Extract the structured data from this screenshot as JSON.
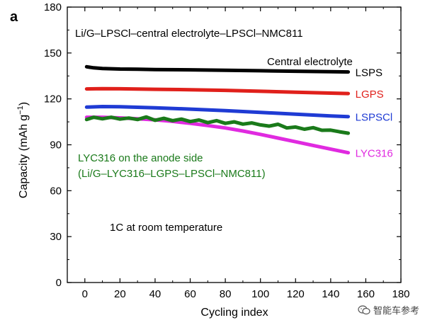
{
  "watermark": "智能车参考",
  "chart_data": {
    "type": "line",
    "panel_label": "a",
    "title": "Li/G–LPSCl–central electrolyte–LPSCl–NMC811",
    "legend_title": "Central electrolyte",
    "xlabel": "Cycling index",
    "ylabel_parts": [
      "Capacity (mAh g",
      "−1",
      ")"
    ],
    "xlim": [
      -10,
      180
    ],
    "ylim": [
      0,
      180
    ],
    "xticks": [
      0,
      20,
      40,
      60,
      80,
      100,
      120,
      140,
      160,
      180
    ],
    "yticks": [
      0,
      30,
      60,
      90,
      120,
      150,
      180
    ],
    "annotations": [
      "LYC316 on the anode side",
      "(Li/G–LYC316–LGPS–LPSCl–NMC811)",
      "1C at room temperature"
    ],
    "series": [
      {
        "name": "LSPS",
        "color": "#000000",
        "x": [
          1,
          5,
          10,
          20,
          30,
          40,
          60,
          80,
          100,
          120,
          140,
          150
        ],
        "y": [
          141,
          140.3,
          139.9,
          139.5,
          139.4,
          139.2,
          139,
          138.7,
          138.4,
          138.1,
          137.8,
          137.6
        ]
      },
      {
        "name": "LGPS",
        "color": "#e0201b",
        "x": [
          1,
          10,
          20,
          40,
          60,
          80,
          100,
          120,
          140,
          150
        ],
        "y": [
          126.5,
          126.7,
          126.6,
          126.3,
          126,
          125.6,
          125,
          124.4,
          123.8,
          123.5
        ]
      },
      {
        "name": "LSPSCl",
        "color": "#1f3bd4",
        "x": [
          1,
          10,
          20,
          40,
          60,
          80,
          100,
          120,
          140,
          150
        ],
        "y": [
          114.6,
          115,
          114.9,
          114.2,
          113.3,
          112.3,
          111.2,
          110,
          108.9,
          108.4
        ]
      },
      {
        "name": "LYC316",
        "color": "#e02ae0",
        "x": [
          1,
          10,
          20,
          30,
          40,
          50,
          60,
          70,
          80,
          90,
          100,
          110,
          120,
          130,
          140,
          150
        ],
        "y": [
          108,
          108,
          107.6,
          107,
          106.3,
          105.3,
          104,
          102.6,
          101,
          99,
          96.8,
          94.4,
          92,
          89.6,
          87.2,
          84.8
        ]
      },
      {
        "name": "LYC316 on the anode side",
        "color": "#1a7a1a",
        "x": [
          1,
          5,
          10,
          15,
          20,
          25,
          30,
          35,
          40,
          45,
          50,
          55,
          60,
          65,
          70,
          75,
          80,
          85,
          90,
          95,
          100,
          105,
          110,
          115,
          120,
          125,
          130,
          135,
          140,
          145,
          150
        ],
        "y": [
          106.5,
          108,
          107,
          108,
          106.8,
          107.5,
          106.5,
          108.2,
          106,
          107.3,
          105.8,
          106.8,
          105.2,
          106.2,
          104.5,
          105.8,
          104,
          105,
          103.5,
          104.3,
          103,
          102.2,
          103.4,
          101,
          101.6,
          100.2,
          101.2,
          99.5,
          99.6,
          98.5,
          97.6
        ]
      }
    ]
  }
}
